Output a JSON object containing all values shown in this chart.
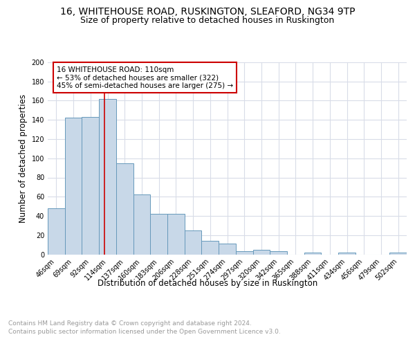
{
  "title": "16, WHITEHOUSE ROAD, RUSKINGTON, SLEAFORD, NG34 9TP",
  "subtitle": "Size of property relative to detached houses in Ruskington",
  "xlabel": "Distribution of detached houses by size in Ruskington",
  "ylabel": "Number of detached properties",
  "categories": [
    "46sqm",
    "69sqm",
    "92sqm",
    "114sqm",
    "137sqm",
    "160sqm",
    "183sqm",
    "206sqm",
    "228sqm",
    "251sqm",
    "274sqm",
    "297sqm",
    "320sqm",
    "342sqm",
    "365sqm",
    "388sqm",
    "411sqm",
    "434sqm",
    "456sqm",
    "479sqm",
    "502sqm"
  ],
  "values": [
    48,
    142,
    143,
    162,
    95,
    62,
    42,
    42,
    25,
    14,
    11,
    3,
    5,
    3,
    0,
    2,
    0,
    2,
    0,
    0,
    2
  ],
  "bar_color": "#c8d8e8",
  "bar_edge_color": "#6699bb",
  "grid_color": "#d8dce8",
  "property_line_label": "16 WHITEHOUSE ROAD: 110sqm",
  "annotation_line1": "← 53% of detached houses are smaller (322)",
  "annotation_line2": "45% of semi-detached houses are larger (275) →",
  "annotation_box_color": "#ffffff",
  "annotation_box_edge": "#cc0000",
  "red_line_color": "#cc0000",
  "ylim": [
    0,
    200
  ],
  "yticks": [
    0,
    20,
    40,
    60,
    80,
    100,
    120,
    140,
    160,
    180,
    200
  ],
  "footer_line1": "Contains HM Land Registry data © Crown copyright and database right 2024.",
  "footer_line2": "Contains public sector information licensed under the Open Government Licence v3.0.",
  "title_fontsize": 10,
  "subtitle_fontsize": 9,
  "axis_label_fontsize": 8.5,
  "tick_fontsize": 7,
  "annotation_fontsize": 7.5,
  "footer_fontsize": 6.5
}
